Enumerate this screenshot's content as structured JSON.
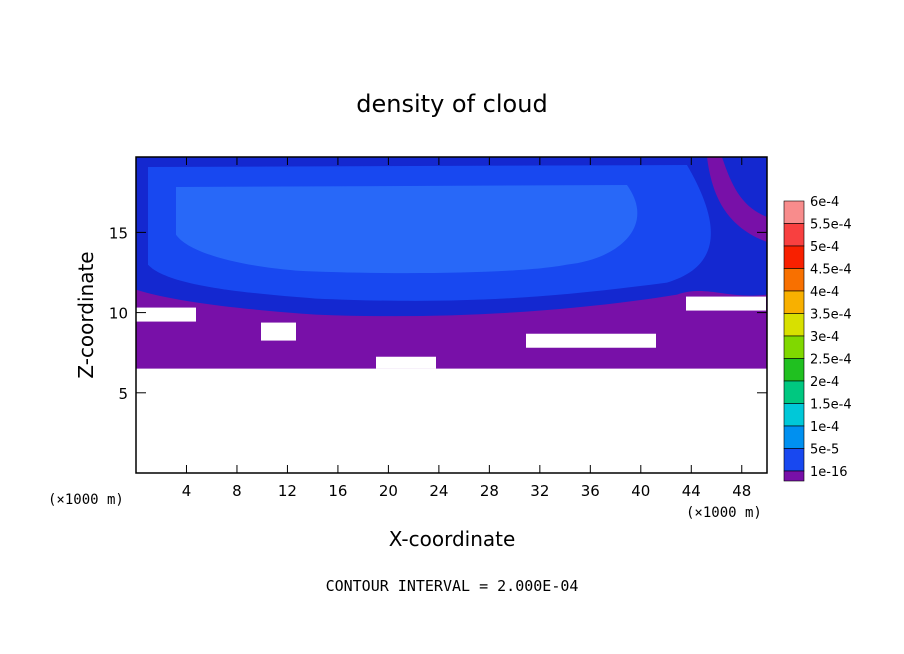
{
  "chart_data": {
    "type": "heatmap",
    "title": "density of cloud",
    "xlabel": "X-coordinate",
    "ylabel": "Z-coordinate",
    "x_unit": "(×1000 m)",
    "x_unit_right": "(×1000 m)",
    "xlim": [
      0,
      50
    ],
    "ylim": [
      0,
      19.7
    ],
    "x_ticks": [
      {
        "value": 4,
        "label": "4"
      },
      {
        "value": 8,
        "label": "8"
      },
      {
        "value": 12,
        "label": "12"
      },
      {
        "value": 16,
        "label": "16"
      },
      {
        "value": 20,
        "label": "20"
      },
      {
        "value": 24,
        "label": "24"
      },
      {
        "value": 28,
        "label": "28"
      },
      {
        "value": 32,
        "label": "32"
      },
      {
        "value": 36,
        "label": "36"
      },
      {
        "value": 40,
        "label": "40"
      },
      {
        "value": 44,
        "label": "44"
      },
      {
        "value": 48,
        "label": "48"
      }
    ],
    "y_ticks": [
      {
        "value": 5,
        "label": "5"
      },
      {
        "value": 10,
        "label": "10"
      },
      {
        "value": 15,
        "label": "15"
      }
    ],
    "colorbar": {
      "levels": [
        {
          "label": "6e-4",
          "color": "#f88c8c"
        },
        {
          "label": "5.5e-4",
          "color": "#f84040"
        },
        {
          "label": "5e-4",
          "color": "#f82000"
        },
        {
          "label": "4.5e-4",
          "color": "#f87000"
        },
        {
          "label": "4e-4",
          "color": "#f8b000"
        },
        {
          "label": "3.5e-4",
          "color": "#d8e000"
        },
        {
          "label": "3e-4",
          "color": "#80d800"
        },
        {
          "label": "2.5e-4",
          "color": "#20c020"
        },
        {
          "label": "2e-4",
          "color": "#00c880"
        },
        {
          "label": "1.5e-4",
          "color": "#00c8d8"
        },
        {
          "label": "1e-4",
          "color": "#0090f0"
        },
        {
          "label": "5e-5",
          "color": "#1848f0"
        },
        {
          "label": "1e-16",
          "color": "#1010a8"
        }
      ],
      "bottom_color": "#7810a8"
    },
    "field": {
      "background_top_layer_color": "#7810a8",
      "cloud_mid_color": "#1848f0",
      "cloud_core_color": "#2868f8",
      "cloud_edge_color": "#1428d0",
      "cloud_base_z": 6.5,
      "anvil_base_z": 10.5,
      "top_z": 19.7
    },
    "contour_interval_text": "CONTOUR INTERVAL = 2.000E-04"
  }
}
